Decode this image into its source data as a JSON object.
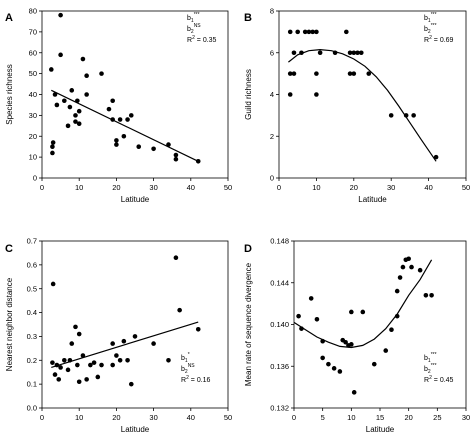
{
  "chart_data": [
    {
      "type": "scatter",
      "panel": "A",
      "xlabel": "Latitude",
      "ylabel": "Species richness",
      "xlim": [
        0,
        50
      ],
      "ylim": [
        0,
        80
      ],
      "xticks": [
        0,
        10,
        20,
        30,
        40,
        50
      ],
      "yticks": [
        0,
        10,
        20,
        30,
        40,
        50,
        60,
        70,
        80
      ],
      "points": [
        [
          2.5,
          52
        ],
        [
          2.8,
          15
        ],
        [
          2.8,
          12
        ],
        [
          3,
          17
        ],
        [
          3.5,
          40
        ],
        [
          4,
          35
        ],
        [
          5,
          78
        ],
        [
          5,
          59
        ],
        [
          6,
          37
        ],
        [
          7,
          25
        ],
        [
          7.5,
          34
        ],
        [
          8,
          42
        ],
        [
          9,
          30
        ],
        [
          9,
          27
        ],
        [
          9.5,
          37
        ],
        [
          10,
          26
        ],
        [
          10,
          32
        ],
        [
          11,
          57
        ],
        [
          12,
          40
        ],
        [
          12,
          49
        ],
        [
          16,
          50
        ],
        [
          18,
          33
        ],
        [
          19,
          37
        ],
        [
          19,
          28
        ],
        [
          20,
          18
        ],
        [
          20,
          16
        ],
        [
          21,
          28
        ],
        [
          22,
          20
        ],
        [
          23,
          28
        ],
        [
          24,
          30
        ],
        [
          26,
          15
        ],
        [
          30,
          14
        ],
        [
          34,
          16
        ],
        [
          36,
          9
        ],
        [
          36,
          11
        ],
        [
          42,
          8
        ]
      ],
      "fit_line": [
        [
          2.5,
          42
        ],
        [
          42,
          8
        ]
      ],
      "annotations": {
        "b1": "b",
        "b1_sub": "1",
        "b1_sup": "***",
        "b2": "b",
        "b2_sub": "2",
        "b2_sup": "NS",
        "r2": "R",
        "r2_sup": "2",
        "r2_value": " = 0.35"
      }
    },
    {
      "type": "scatter",
      "panel": "B",
      "xlabel": "Latitude",
      "ylabel": "Guild richness",
      "xlim": [
        0,
        50
      ],
      "ylim": [
        0,
        8
      ],
      "xticks": [
        0,
        10,
        20,
        30,
        40,
        50
      ],
      "yticks": [
        0,
        2,
        4,
        6,
        8
      ],
      "points": [
        [
          3,
          7
        ],
        [
          3,
          5
        ],
        [
          3,
          4
        ],
        [
          4,
          6
        ],
        [
          4,
          5
        ],
        [
          5,
          7
        ],
        [
          6,
          6
        ],
        [
          7,
          7
        ],
        [
          8,
          7
        ],
        [
          9,
          7
        ],
        [
          10,
          7
        ],
        [
          10,
          5
        ],
        [
          10,
          4
        ],
        [
          11,
          6
        ],
        [
          15,
          6
        ],
        [
          18,
          7
        ],
        [
          19,
          6
        ],
        [
          19,
          5
        ],
        [
          20,
          6
        ],
        [
          20,
          5
        ],
        [
          21,
          6
        ],
        [
          22,
          6
        ],
        [
          24,
          5
        ],
        [
          30,
          3
        ],
        [
          34,
          3
        ],
        [
          36,
          3
        ],
        [
          42,
          1
        ]
      ],
      "fit_line": [
        [
          2.5,
          5.55
        ],
        [
          5,
          5.9
        ],
        [
          8,
          6.1
        ],
        [
          11,
          6.15
        ],
        [
          14,
          6.1
        ],
        [
          17,
          5.95
        ],
        [
          20,
          5.7
        ],
        [
          23,
          5.35
        ],
        [
          26,
          4.85
        ],
        [
          29,
          4.2
        ],
        [
          32,
          3.45
        ],
        [
          35,
          2.65
        ],
        [
          38,
          1.85
        ],
        [
          42,
          0.8
        ]
      ],
      "annotations": {
        "b1": "b",
        "b1_sub": "1",
        "b1_sup": "***",
        "b2": "b",
        "b2_sub": "2",
        "b2_sup": "***",
        "r2": "R",
        "r2_sup": "2",
        "r2_value": " = 0.69"
      }
    },
    {
      "type": "scatter",
      "panel": "C",
      "xlabel": "Latitude",
      "ylabel": "Nearest neighbor distance",
      "xlim": [
        0,
        50
      ],
      "ylim": [
        0.0,
        0.7
      ],
      "xticks": [
        0,
        10,
        20,
        30,
        40,
        50
      ],
      "yticks": [
        0.0,
        0.1,
        0.2,
        0.3,
        0.4,
        0.5,
        0.6,
        0.7
      ],
      "yticklabels": [
        "0.0",
        "0.1",
        "0.2",
        "0.3",
        "0.4",
        "0.5",
        "0.6",
        "0.7"
      ],
      "points": [
        [
          2.8,
          0.19
        ],
        [
          3,
          0.52
        ],
        [
          3.5,
          0.14
        ],
        [
          4,
          0.18
        ],
        [
          4.5,
          0.12
        ],
        [
          5,
          0.17
        ],
        [
          6,
          0.2
        ],
        [
          7,
          0.16
        ],
        [
          7.5,
          0.2
        ],
        [
          8,
          0.27
        ],
        [
          9,
          0.34
        ],
        [
          9.5,
          0.18
        ],
        [
          10,
          0.31
        ],
        [
          10,
          0.11
        ],
        [
          11,
          0.22
        ],
        [
          12,
          0.12
        ],
        [
          13,
          0.18
        ],
        [
          14,
          0.19
        ],
        [
          15,
          0.13
        ],
        [
          16,
          0.18
        ],
        [
          19,
          0.27
        ],
        [
          19,
          0.18
        ],
        [
          20,
          0.22
        ],
        [
          21,
          0.2
        ],
        [
          22,
          0.28
        ],
        [
          23,
          0.2
        ],
        [
          24,
          0.1
        ],
        [
          25,
          0.3
        ],
        [
          30,
          0.27
        ],
        [
          34,
          0.2
        ],
        [
          36,
          0.63
        ],
        [
          37,
          0.41
        ],
        [
          42,
          0.33
        ]
      ],
      "fit_line": [
        [
          2.5,
          0.17
        ],
        [
          42,
          0.36
        ]
      ],
      "annotations": {
        "b1": "b",
        "b1_sub": "1",
        "b1_sup": "*",
        "b2": "b",
        "b2_sub": "2",
        "b2_sup": "NS",
        "r2": "R",
        "r2_sup": "2",
        "r2_value": " = 0.16"
      }
    },
    {
      "type": "scatter",
      "panel": "D",
      "xlabel": "Latitude",
      "ylabel": "Mean rate of sequence divergence",
      "xlim": [
        0,
        30
      ],
      "ylim": [
        0.132,
        0.148
      ],
      "xticks": [
        0,
        5,
        10,
        15,
        20,
        25,
        30
      ],
      "yticks": [
        0.132,
        0.136,
        0.14,
        0.144,
        0.148
      ],
      "yticklabels": [
        "0.132",
        "0.136",
        "0.140",
        "0.144",
        "0.148"
      ],
      "points": [
        [
          0.8,
          0.1408
        ],
        [
          1.3,
          0.1396
        ],
        [
          3,
          0.1425
        ],
        [
          4,
          0.1405
        ],
        [
          5,
          0.1384
        ],
        [
          5,
          0.1368
        ],
        [
          6,
          0.1362
        ],
        [
          7,
          0.1358
        ],
        [
          8,
          0.1355
        ],
        [
          8.5,
          0.1385
        ],
        [
          9,
          0.1383
        ],
        [
          9.5,
          0.138
        ],
        [
          10,
          0.1412
        ],
        [
          10,
          0.1381
        ],
        [
          10.5,
          0.1335
        ],
        [
          12,
          0.1412
        ],
        [
          14,
          0.1362
        ],
        [
          16,
          0.1375
        ],
        [
          17,
          0.1395
        ],
        [
          18,
          0.1408
        ],
        [
          18,
          0.1432
        ],
        [
          18.5,
          0.1445
        ],
        [
          19,
          0.1455
        ],
        [
          19.5,
          0.1462
        ],
        [
          20,
          0.1463
        ],
        [
          20.5,
          0.1455
        ],
        [
          22,
          0.1452
        ],
        [
          23,
          0.1428
        ],
        [
          24,
          0.1428
        ]
      ],
      "fit_line": [
        [
          0,
          0.1402
        ],
        [
          2,
          0.1395
        ],
        [
          4,
          0.1388
        ],
        [
          6,
          0.1383
        ],
        [
          8,
          0.1379
        ],
        [
          10,
          0.1378
        ],
        [
          12,
          0.138
        ],
        [
          14,
          0.1386
        ],
        [
          16,
          0.1396
        ],
        [
          18,
          0.141
        ],
        [
          20,
          0.1428
        ],
        [
          22,
          0.1443
        ],
        [
          24,
          0.1462
        ]
      ],
      "annotations": {
        "b1": "b",
        "b1_sub": "1",
        "b1_sup": "***",
        "b2": "b",
        "b2_sub": "2",
        "b2_sup": "***",
        "r2": "R",
        "r2_sup": "2",
        "r2_value": " = 0.45"
      }
    }
  ]
}
